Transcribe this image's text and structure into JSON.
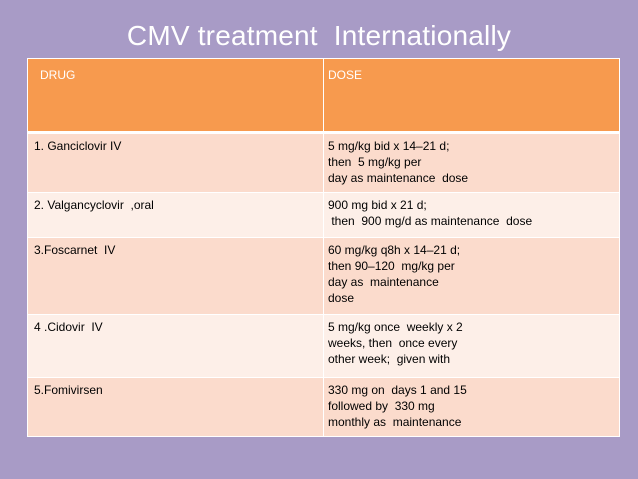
{
  "slide": {
    "title": "CMV treatment  Internationally"
  },
  "table": {
    "header": {
      "drug": "DRUG",
      "dose": "DOSE"
    },
    "rows": [
      {
        "drug": "1. Ganciclovir IV",
        "dose": "5 mg/kg bid x 14–21 d;\nthen  5 mg/kg per\nday as maintenance  dose"
      },
      {
        "drug": "2. Valgancyclovir  ,oral",
        "dose": "900 mg bid x 21 d;\n then  900 mg/d as maintenance  dose"
      },
      {
        "drug": "3.Foscarnet  IV",
        "dose": "60 mg/kg q8h x 14–21 d;\nthen 90–120  mg/kg per\nday as  maintenance\ndose"
      },
      {
        "drug": "4 .Cidovir  IV",
        "dose": "5 mg/kg once  weekly x 2\nweeks, then  once every\nother week;  given with"
      },
      {
        "drug": "5.Fomivirsen",
        "dose": "330 mg on  days 1 and 15\nfollowed by  330 mg\nmonthly as  maintenance"
      }
    ]
  },
  "colors": {
    "background": "#a89bc6",
    "header": "#f79a4e",
    "row_odd": "#fbdbcc",
    "row_even": "#fdefe8",
    "title_text": "#ffffff"
  }
}
